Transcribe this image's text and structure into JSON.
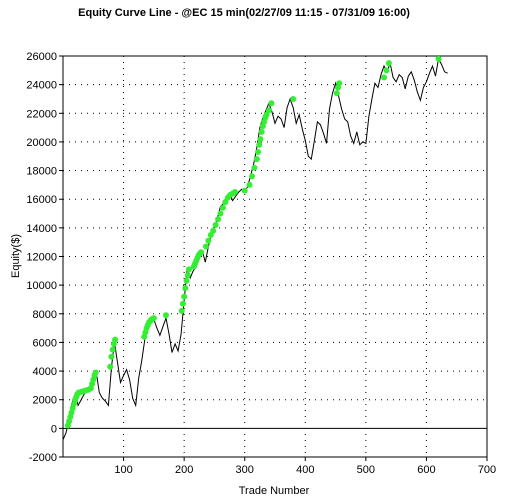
{
  "chart_data": {
    "type": "line",
    "title": "Equity Curve Line - @EC 15 min(02/27/09 11:15 - 07/31/09 16:00)",
    "xlabel": "Trade Number",
    "ylabel": "Equity($)",
    "xlim": [
      0,
      700
    ],
    "ylim": [
      -2000,
      26000
    ],
    "x_ticks": [
      100,
      200,
      300,
      400,
      500,
      600,
      700
    ],
    "y_ticks": [
      -2000,
      0,
      2000,
      4000,
      6000,
      8000,
      10000,
      12000,
      14000,
      16000,
      18000,
      20000,
      22000,
      24000,
      26000
    ],
    "grid": "dotted",
    "series": [
      {
        "line_color": "#000000",
        "marker_color": "#33ee33",
        "x": [
          0,
          5,
          10,
          15,
          20,
          25,
          30,
          35,
          40,
          45,
          50,
          55,
          60,
          65,
          70,
          75,
          80,
          85,
          90,
          95,
          100,
          105,
          110,
          115,
          120,
          125,
          130,
          135,
          140,
          145,
          150,
          155,
          160,
          165,
          170,
          175,
          180,
          185,
          190,
          195,
          200,
          205,
          210,
          215,
          220,
          225,
          230,
          235,
          240,
          245,
          250,
          255,
          260,
          265,
          270,
          275,
          280,
          285,
          290,
          295,
          300,
          305,
          310,
          315,
          320,
          325,
          330,
          335,
          340,
          345,
          350,
          355,
          360,
          365,
          370,
          375,
          380,
          385,
          390,
          395,
          400,
          405,
          410,
          415,
          420,
          425,
          430,
          435,
          440,
          445,
          450,
          455,
          460,
          465,
          470,
          475,
          480,
          485,
          490,
          495,
          500,
          505,
          510,
          515,
          520,
          525,
          530,
          535,
          540,
          545,
          550,
          555,
          560,
          565,
          570,
          575,
          580,
          585,
          590,
          595,
          600,
          605,
          610,
          615,
          620,
          625,
          630,
          635
        ],
        "y": [
          -800,
          -300,
          600,
          1800,
          2400,
          1600,
          2000,
          2400,
          2600,
          2700,
          3300,
          3900,
          2500,
          2100,
          1900,
          1600,
          4300,
          6000,
          4600,
          3200,
          3700,
          4100,
          3400,
          2100,
          1600,
          3500,
          4700,
          6200,
          7200,
          7700,
          7600,
          7000,
          6500,
          7100,
          7700,
          6600,
          5300,
          5900,
          5400,
          6600,
          8900,
          11200,
          10500,
          11000,
          11300,
          12100,
          12400,
          11600,
          12700,
          13600,
          14000,
          14700,
          15500,
          15700,
          16200,
          16400,
          15900,
          16200,
          16500,
          16700,
          16500,
          16900,
          17700,
          18500,
          19600,
          21000,
          21700,
          22200,
          22700,
          22100,
          21300,
          21800,
          21600,
          21000,
          22400,
          23000,
          22400,
          21300,
          21900,
          20900,
          20100,
          19000,
          18800,
          20100,
          21400,
          21200,
          20600,
          19900,
          22300,
          23400,
          24100,
          23200,
          22300,
          21600,
          21400,
          20400,
          19900,
          20700,
          19800,
          20000,
          19900,
          21800,
          23000,
          24100,
          23800,
          24700,
          25300,
          24900,
          25500,
          24500,
          24200,
          24700,
          24500,
          23700,
          24600,
          24900,
          24300,
          23500,
          22900,
          23800,
          24200,
          24800,
          25300,
          24600,
          25800,
          25400,
          24900,
          24800
        ],
        "new_high_x": [
          8,
          10,
          12,
          14,
          16,
          18,
          20,
          22,
          24,
          26,
          30,
          34,
          38,
          42,
          46,
          48,
          50,
          52,
          54,
          78,
          80,
          82,
          84,
          86,
          134,
          136,
          138,
          140,
          142,
          144,
          146,
          148,
          150,
          170,
          196,
          198,
          200,
          202,
          204,
          206,
          208,
          216,
          218,
          220,
          222,
          224,
          226,
          228,
          236,
          240,
          244,
          248,
          252,
          256,
          260,
          264,
          268,
          272,
          276,
          280,
          284,
          300,
          308,
          312,
          316,
          320,
          322,
          324,
          326,
          328,
          330,
          332,
          334,
          336,
          340,
          344,
          380,
          452,
          454,
          456,
          530,
          534,
          538,
          620
        ],
        "new_high_y": [
          200,
          500,
          800,
          1100,
          1400,
          1700,
          2000,
          2200,
          2400,
          2500,
          2550,
          2600,
          2650,
          2700,
          2800,
          3100,
          3400,
          3700,
          3900,
          4300,
          5000,
          5500,
          5900,
          6200,
          6400,
          6700,
          7000,
          7200,
          7400,
          7500,
          7600,
          7650,
          7700,
          7900,
          8200,
          8700,
          9200,
          9800,
          10300,
          10700,
          11100,
          11300,
          11500,
          11700,
          11900,
          12100,
          12200,
          12300,
          12700,
          13100,
          13500,
          13800,
          14200,
          14600,
          15000,
          15400,
          15800,
          16100,
          16300,
          16400,
          16500,
          16600,
          17000,
          17600,
          18200,
          18800,
          19300,
          19800,
          20200,
          20700,
          21100,
          21400,
          21700,
          21900,
          22200,
          22700,
          23000,
          23400,
          23800,
          24100,
          24500,
          25000,
          25500,
          25800
        ]
      }
    ]
  }
}
